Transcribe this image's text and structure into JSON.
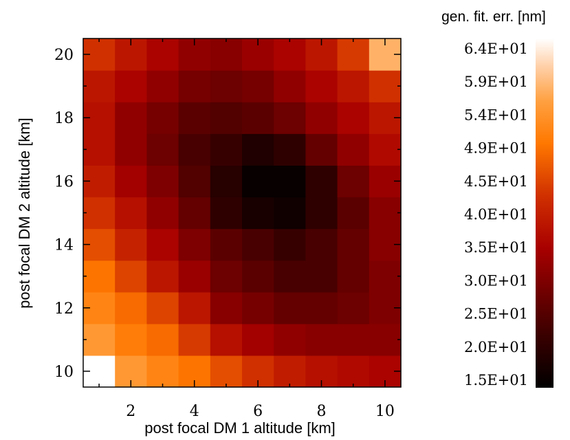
{
  "chart_data": {
    "type": "heatmap",
    "xlabel": "post focal DM 1 altitude [km]",
    "ylabel": "post focal DM 2 altitude [km]",
    "colorbar_label": "gen. fit. err. [nm]",
    "x": [
      1,
      2,
      3,
      4,
      5,
      6,
      7,
      8,
      9,
      10
    ],
    "y": [
      10,
      11,
      12,
      13,
      14,
      15,
      16,
      17,
      18,
      19,
      20
    ],
    "xticks": [
      "2",
      "4",
      "6",
      "8",
      "10"
    ],
    "xtick_values": [
      2,
      4,
      6,
      8,
      10
    ],
    "yticks": [
      "10",
      "12",
      "14",
      "16",
      "18",
      "20"
    ],
    "ytick_values": [
      10,
      12,
      14,
      16,
      18,
      20
    ],
    "colorbar_ticks": [
      "6.4E+01",
      "5.9E+01",
      "5.4E+01",
      "4.9E+01",
      "4.5E+01",
      "4.0E+01",
      "3.5E+01",
      "3.0E+01",
      "2.5E+01",
      "2.0E+01",
      "1.5E+01"
    ],
    "colorbar_values": [
      64,
      59,
      54,
      49,
      45,
      40,
      35,
      30,
      25,
      20,
      15
    ],
    "vmin": 15,
    "vmax": 64,
    "colormap": "black-red-orange-white",
    "values": [
      [
        64,
        54,
        51,
        49,
        45,
        42,
        39,
        37,
        36,
        35
      ],
      [
        54,
        50,
        48,
        43,
        37,
        34,
        32,
        31,
        31,
        31
      ],
      [
        51,
        48,
        44,
        38,
        31,
        29,
        27,
        27,
        28,
        30
      ],
      [
        49,
        44,
        38,
        33,
        28,
        26,
        24,
        24,
        27,
        30
      ],
      [
        45,
        40,
        35,
        30,
        26,
        24,
        22,
        24,
        27,
        31
      ],
      [
        42,
        37,
        32,
        27,
        21,
        18,
        17,
        21,
        26,
        31
      ],
      [
        39,
        34,
        30,
        25,
        20,
        16,
        16,
        21,
        28,
        33
      ],
      [
        37,
        32,
        28,
        24,
        22,
        19,
        21,
        27,
        32,
        36
      ],
      [
        37,
        32,
        29,
        26,
        25,
        26,
        28,
        32,
        35,
        38
      ],
      [
        38,
        35,
        32,
        29,
        28,
        29,
        32,
        35,
        38,
        42
      ],
      [
        42,
        38,
        35,
        32,
        31,
        33,
        35,
        38,
        43,
        57
      ]
    ]
  }
}
